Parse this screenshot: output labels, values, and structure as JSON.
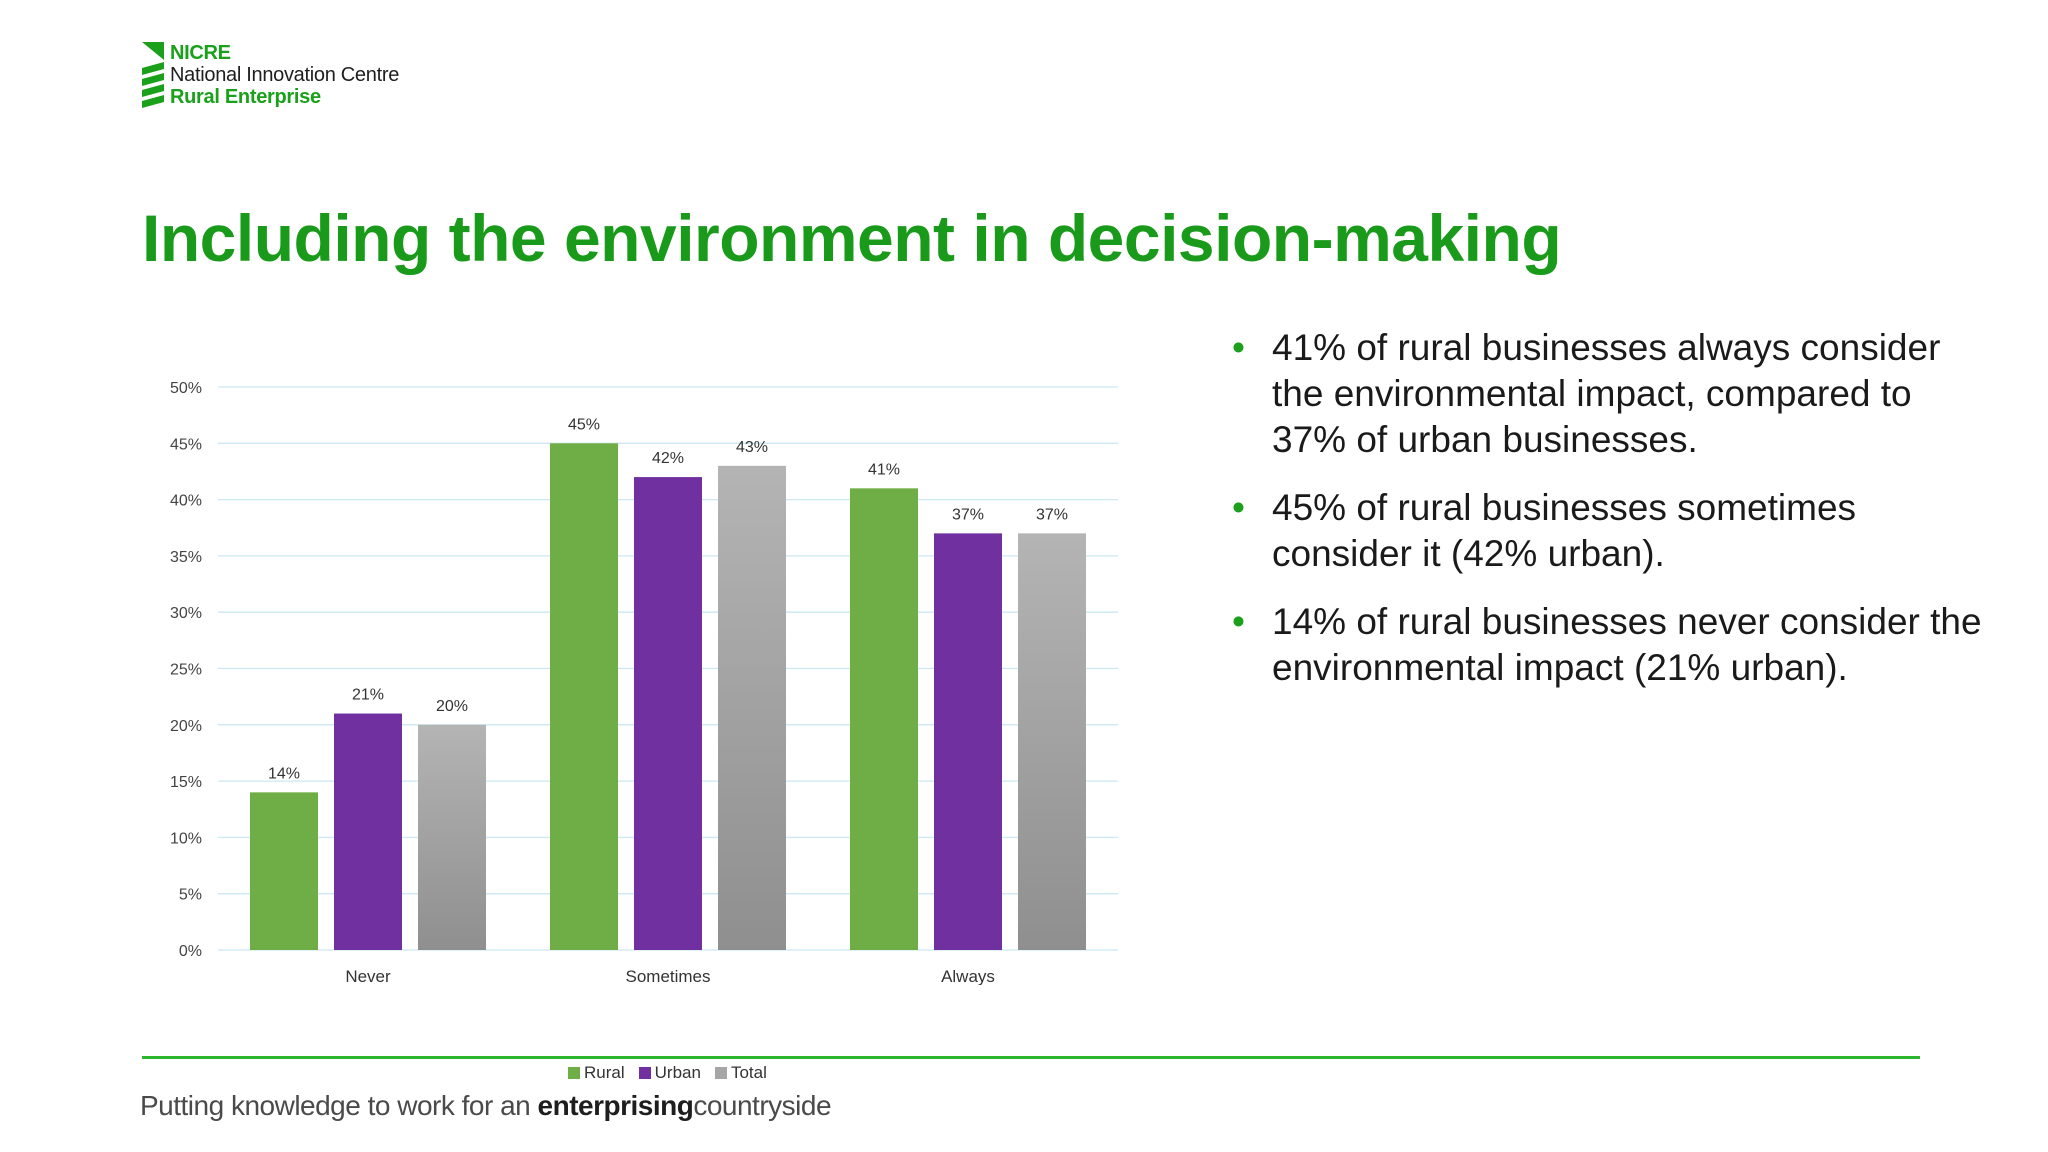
{
  "logo": {
    "line1": "NICRE",
    "line2": "National Innovation Centre",
    "line3": "Rural Enterprise",
    "brand_color": "#1aa01a"
  },
  "title": "Including the environment in decision-making",
  "bullets": [
    "41% of rural businesses always consider the environmental impact, compared to 37% of urban businesses.",
    "45% of rural businesses sometimes consider it (42% urban).",
    "14% of rural businesses never consider the environmental impact (21% urban)."
  ],
  "bullet_glyph": "•",
  "tagline": {
    "pre": "Putting knowledge to work for an ",
    "bold": "enterprising",
    "post": "countryside"
  },
  "chart_data": {
    "type": "bar",
    "categories": [
      "Never",
      "Sometimes",
      "Always"
    ],
    "series": [
      {
        "name": "Rural",
        "values": [
          14,
          45,
          41
        ],
        "color": "#6fad46"
      },
      {
        "name": "Urban",
        "values": [
          21,
          42,
          37
        ],
        "color": "#7030a0"
      },
      {
        "name": "Total",
        "values": [
          20,
          43,
          37
        ],
        "color": "#a6a6a6"
      }
    ],
    "ylim": [
      0,
      50
    ],
    "yticks": [
      "0%",
      "5%",
      "10%",
      "15%",
      "20%",
      "25%",
      "30%",
      "35%",
      "40%",
      "45%",
      "50%"
    ],
    "data_labels": [
      [
        "14%",
        "45%",
        "41%"
      ],
      [
        "21%",
        "42%",
        "37%"
      ],
      [
        "20%",
        "43%",
        "37%"
      ]
    ],
    "grid": true,
    "legend_position": "bottom",
    "title": "",
    "xlabel": "",
    "ylabel": ""
  }
}
